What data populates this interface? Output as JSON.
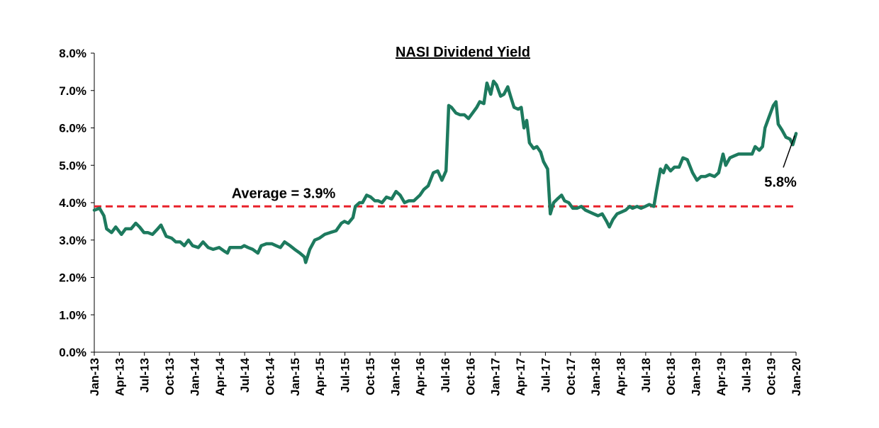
{
  "chart_data": {
    "type": "line",
    "title": "NASI Dividend Yield",
    "xlabel": "",
    "ylabel": "",
    "ylim": [
      0,
      8
    ],
    "y_ticks": [
      "0.0%",
      "1.0%",
      "2.0%",
      "3.0%",
      "4.0%",
      "5.0%",
      "6.0%",
      "7.0%",
      "8.0%"
    ],
    "x_ticks": [
      "Jan-13",
      "Apr-13",
      "Jul-13",
      "Oct-13",
      "Jan-14",
      "Apr-14",
      "Jul-14",
      "Oct-14",
      "Jan-15",
      "Apr-15",
      "Jul-15",
      "Oct-15",
      "Jan-16",
      "Apr-16",
      "Jul-16",
      "Oct-16",
      "Jan-17",
      "Apr-17",
      "Jul-17",
      "Oct-17",
      "Jan-18",
      "Apr-18",
      "Jul-18",
      "Oct-18",
      "Jan-19",
      "Apr-19",
      "Jul-19",
      "Oct-19",
      "Jan-20"
    ],
    "grid": false,
    "line_color": "#1d7a5e",
    "average": {
      "value": 3.9,
      "label": "Average = 3.9%",
      "color": "#e8212a"
    },
    "last_label": "5.8%",
    "series": [
      {
        "values": [
          [
            "2013-01-01",
            3.8
          ],
          [
            "2013-01-20",
            3.85
          ],
          [
            "2013-02-05",
            3.65
          ],
          [
            "2013-02-15",
            3.3
          ],
          [
            "2013-03-05",
            3.2
          ],
          [
            "2013-03-20",
            3.35
          ],
          [
            "2013-04-10",
            3.15
          ],
          [
            "2013-04-25",
            3.3
          ],
          [
            "2013-05-15",
            3.3
          ],
          [
            "2013-06-01",
            3.45
          ],
          [
            "2013-06-15",
            3.35
          ],
          [
            "2013-07-01",
            3.2
          ],
          [
            "2013-07-15",
            3.2
          ],
          [
            "2013-08-01",
            3.15
          ],
          [
            "2013-08-20",
            3.3
          ],
          [
            "2013-09-01",
            3.4
          ],
          [
            "2013-09-20",
            3.1
          ],
          [
            "2013-10-10",
            3.05
          ],
          [
            "2013-10-25",
            2.95
          ],
          [
            "2013-11-10",
            2.95
          ],
          [
            "2013-11-25",
            2.85
          ],
          [
            "2013-12-10",
            3.0
          ],
          [
            "2013-12-25",
            2.85
          ],
          [
            "2014-01-15",
            2.8
          ],
          [
            "2014-02-01",
            2.95
          ],
          [
            "2014-02-20",
            2.8
          ],
          [
            "2014-03-10",
            2.75
          ],
          [
            "2014-04-01",
            2.8
          ],
          [
            "2014-04-20",
            2.7
          ],
          [
            "2014-05-01",
            2.65
          ],
          [
            "2014-05-10",
            2.8
          ],
          [
            "2014-06-01",
            2.8
          ],
          [
            "2014-06-20",
            2.8
          ],
          [
            "2014-07-01",
            2.85
          ],
          [
            "2014-07-15",
            2.8
          ],
          [
            "2014-08-01",
            2.75
          ],
          [
            "2014-08-20",
            2.65
          ],
          [
            "2014-09-01",
            2.85
          ],
          [
            "2014-09-20",
            2.9
          ],
          [
            "2014-10-10",
            2.9
          ],
          [
            "2014-10-25",
            2.85
          ],
          [
            "2014-11-10",
            2.8
          ],
          [
            "2014-11-25",
            2.95
          ],
          [
            "2014-12-15",
            2.85
          ],
          [
            "2015-01-01",
            2.75
          ],
          [
            "2015-01-20",
            2.65
          ],
          [
            "2015-02-05",
            2.55
          ],
          [
            "2015-02-10",
            2.4
          ],
          [
            "2015-02-25",
            2.75
          ],
          [
            "2015-03-15",
            3.0
          ],
          [
            "2015-04-01",
            3.05
          ],
          [
            "2015-04-20",
            3.15
          ],
          [
            "2015-05-10",
            3.2
          ],
          [
            "2015-06-01",
            3.25
          ],
          [
            "2015-06-20",
            3.45
          ],
          [
            "2015-07-01",
            3.5
          ],
          [
            "2015-07-15",
            3.45
          ],
          [
            "2015-08-01",
            3.6
          ],
          [
            "2015-08-10",
            3.9
          ],
          [
            "2015-08-25",
            4.0
          ],
          [
            "2015-09-05",
            4.0
          ],
          [
            "2015-09-20",
            4.2
          ],
          [
            "2015-10-05",
            4.15
          ],
          [
            "2015-10-20",
            4.05
          ],
          [
            "2015-11-01",
            4.05
          ],
          [
            "2015-11-15",
            4.0
          ],
          [
            "2015-12-01",
            4.15
          ],
          [
            "2015-12-20",
            4.1
          ],
          [
            "2016-01-05",
            4.3
          ],
          [
            "2016-01-20",
            4.2
          ],
          [
            "2016-02-05",
            4.0
          ],
          [
            "2016-02-20",
            4.05
          ],
          [
            "2016-03-10",
            4.05
          ],
          [
            "2016-04-01",
            4.2
          ],
          [
            "2016-04-15",
            4.35
          ],
          [
            "2016-05-01",
            4.45
          ],
          [
            "2016-05-20",
            4.8
          ],
          [
            "2016-06-05",
            4.85
          ],
          [
            "2016-06-20",
            4.6
          ],
          [
            "2016-07-05",
            4.85
          ],
          [
            "2016-07-15",
            6.6
          ],
          [
            "2016-07-25",
            6.55
          ],
          [
            "2016-08-10",
            6.4
          ],
          [
            "2016-08-25",
            6.35
          ],
          [
            "2016-09-10",
            6.35
          ],
          [
            "2016-09-25",
            6.25
          ],
          [
            "2016-10-10",
            6.4
          ],
          [
            "2016-10-25",
            6.55
          ],
          [
            "2016-11-05",
            6.7
          ],
          [
            "2016-11-20",
            6.65
          ],
          [
            "2016-12-01",
            7.2
          ],
          [
            "2016-12-15",
            6.9
          ],
          [
            "2016-12-25",
            7.25
          ],
          [
            "2017-01-05",
            7.15
          ],
          [
            "2017-01-20",
            6.85
          ],
          [
            "2017-02-01",
            6.9
          ],
          [
            "2017-02-15",
            7.1
          ],
          [
            "2017-02-25",
            6.85
          ],
          [
            "2017-03-10",
            6.55
          ],
          [
            "2017-03-25",
            6.5
          ],
          [
            "2017-04-05",
            6.55
          ],
          [
            "2017-04-15",
            6.0
          ],
          [
            "2017-04-25",
            6.2
          ],
          [
            "2017-05-05",
            5.6
          ],
          [
            "2017-05-20",
            5.45
          ],
          [
            "2017-06-01",
            5.5
          ],
          [
            "2017-06-15",
            5.35
          ],
          [
            "2017-06-25",
            5.1
          ],
          [
            "2017-07-10",
            4.9
          ],
          [
            "2017-07-20",
            3.7
          ],
          [
            "2017-08-01",
            4.0
          ],
          [
            "2017-08-15",
            4.1
          ],
          [
            "2017-08-30",
            4.2
          ],
          [
            "2017-09-10",
            4.05
          ],
          [
            "2017-09-25",
            4.0
          ],
          [
            "2017-10-10",
            3.85
          ],
          [
            "2017-10-25",
            3.85
          ],
          [
            "2017-11-10",
            3.9
          ],
          [
            "2017-11-25",
            3.8
          ],
          [
            "2017-12-10",
            3.75
          ],
          [
            "2017-12-25",
            3.7
          ],
          [
            "2018-01-10",
            3.65
          ],
          [
            "2018-01-25",
            3.7
          ],
          [
            "2018-02-10",
            3.5
          ],
          [
            "2018-02-20",
            3.35
          ],
          [
            "2018-03-05",
            3.55
          ],
          [
            "2018-03-20",
            3.7
          ],
          [
            "2018-04-05",
            3.75
          ],
          [
            "2018-04-20",
            3.8
          ],
          [
            "2018-05-05",
            3.9
          ],
          [
            "2018-05-15",
            3.85
          ],
          [
            "2018-06-01",
            3.9
          ],
          [
            "2018-06-15",
            3.85
          ],
          [
            "2018-07-01",
            3.9
          ],
          [
            "2018-07-15",
            3.95
          ],
          [
            "2018-08-01",
            3.9
          ],
          [
            "2018-08-10",
            4.3
          ],
          [
            "2018-08-25",
            4.9
          ],
          [
            "2018-09-05",
            4.8
          ],
          [
            "2018-09-15",
            5.0
          ],
          [
            "2018-10-01",
            4.85
          ],
          [
            "2018-10-15",
            4.95
          ],
          [
            "2018-11-01",
            4.95
          ],
          [
            "2018-11-15",
            5.2
          ],
          [
            "2018-12-01",
            5.15
          ],
          [
            "2018-12-20",
            4.8
          ],
          [
            "2019-01-05",
            4.6
          ],
          [
            "2019-01-20",
            4.7
          ],
          [
            "2019-02-05",
            4.7
          ],
          [
            "2019-02-20",
            4.75
          ],
          [
            "2019-03-10",
            4.7
          ],
          [
            "2019-03-25",
            4.8
          ],
          [
            "2019-04-10",
            5.3
          ],
          [
            "2019-04-20",
            5.0
          ],
          [
            "2019-05-05",
            5.2
          ],
          [
            "2019-05-20",
            5.25
          ],
          [
            "2019-06-05",
            5.3
          ],
          [
            "2019-06-20",
            5.3
          ],
          [
            "2019-07-10",
            5.3
          ],
          [
            "2019-07-25",
            5.3
          ],
          [
            "2019-08-05",
            5.5
          ],
          [
            "2019-08-20",
            5.4
          ],
          [
            "2019-09-01",
            5.5
          ],
          [
            "2019-09-10",
            6.0
          ],
          [
            "2019-09-25",
            6.3
          ],
          [
            "2019-10-10",
            6.6
          ],
          [
            "2019-10-20",
            6.7
          ],
          [
            "2019-10-28",
            6.1
          ],
          [
            "2019-11-10",
            5.95
          ],
          [
            "2019-11-25",
            5.75
          ],
          [
            "2019-12-10",
            5.7
          ],
          [
            "2019-12-20",
            5.55
          ],
          [
            "2020-01-01",
            5.85
          ]
        ]
      }
    ]
  }
}
